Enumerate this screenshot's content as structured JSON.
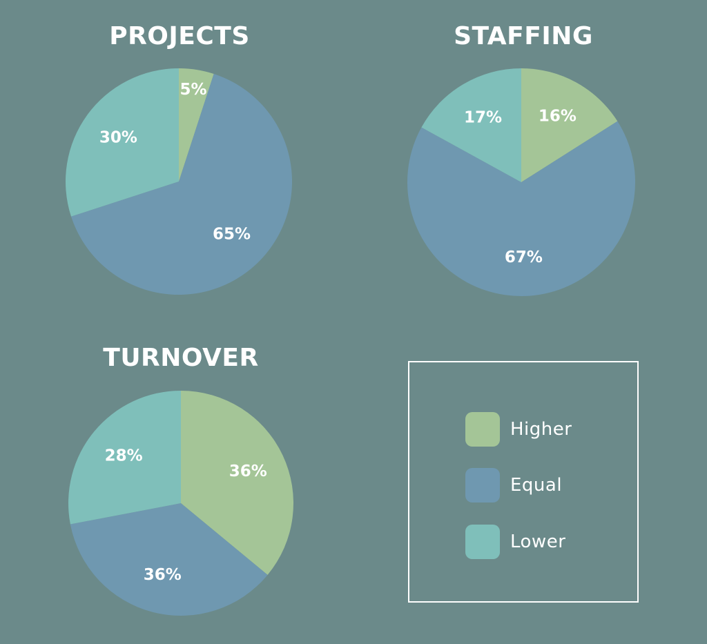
{
  "colors": {
    "background": "#6b8a8a",
    "higher": "#a4c597",
    "equal": "#6f98b0",
    "lower": "#7fbfba"
  },
  "legend": {
    "items": [
      {
        "label": "Higher",
        "color_key": "higher"
      },
      {
        "label": "Equal",
        "color_key": "equal"
      },
      {
        "label": "Lower",
        "color_key": "lower"
      }
    ]
  },
  "chart_data": [
    {
      "type": "pie",
      "title": "PROJECTS",
      "slices": [
        {
          "category": "Higher",
          "value": 5,
          "label": "5%"
        },
        {
          "category": "Equal",
          "value": 65,
          "label": "65%"
        },
        {
          "category": "Lower",
          "value": 30,
          "label": "30%"
        }
      ]
    },
    {
      "type": "pie",
      "title": "STAFFING",
      "slices": [
        {
          "category": "Higher",
          "value": 16,
          "label": "16%"
        },
        {
          "category": "Equal",
          "value": 67,
          "label": "67%"
        },
        {
          "category": "Lower",
          "value": 17,
          "label": "17%"
        }
      ]
    },
    {
      "type": "pie",
      "title": "TURNOVER",
      "slices": [
        {
          "category": "Higher",
          "value": 36,
          "label": "36%"
        },
        {
          "category": "Equal",
          "value": 36,
          "label": "36%"
        },
        {
          "category": "Lower",
          "value": 28,
          "label": "28%"
        }
      ]
    }
  ]
}
